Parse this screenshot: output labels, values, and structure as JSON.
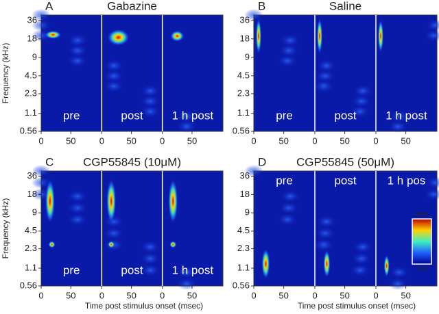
{
  "chart_data": [
    {
      "type": "heatmap",
      "panel": "A",
      "title": "Gabazine",
      "conditions": [
        "pre",
        "post",
        "1 h post"
      ],
      "ylabel": "Frequency (kHz)",
      "log_y": true,
      "ylim": [
        0.56,
        44
      ],
      "yticks": [
        36,
        18,
        9,
        4.5,
        2.3,
        1.1,
        0.56
      ],
      "xlim": [
        0,
        102
      ],
      "xticks": [
        0,
        50
      ]
    },
    {
      "type": "heatmap",
      "panel": "B",
      "title": "Saline",
      "conditions": [
        "pre",
        "post",
        "1 h post"
      ],
      "log_y": true,
      "ylim": [
        0.56,
        44
      ],
      "yticks": [
        36,
        18,
        9,
        4.5,
        2.3,
        1.1,
        0.56
      ],
      "xlim": [
        0,
        102
      ],
      "xticks": [
        0,
        50
      ]
    },
    {
      "type": "heatmap",
      "panel": "C",
      "title": "CGP55845 (10μM)",
      "conditions": [
        "pre",
        "post",
        "1 h post"
      ],
      "ylabel": "Frequency (kHz)",
      "xlabel": "Time post stimulus onset (msec)",
      "log_y": true,
      "ylim": [
        0.56,
        44
      ],
      "yticks": [
        36,
        18,
        9,
        4.5,
        2.3,
        1.1,
        0.56
      ],
      "xlim": [
        0,
        102
      ],
      "xticks": [
        0,
        50
      ]
    },
    {
      "type": "heatmap",
      "panel": "D",
      "title": "CGP55845 (50μM)",
      "conditions": [
        "pre",
        "post",
        "1 h pos"
      ],
      "xlabel": "Time post stimulus onset (msec)",
      "log_y": true,
      "ylim": [
        0.56,
        44
      ],
      "yticks": [
        36,
        18,
        9,
        4.5,
        2.3,
        1.1,
        0.56
      ],
      "xlim": [
        0,
        102
      ],
      "xticks": [
        0,
        50
      ],
      "colorbar": [
        "max",
        "min"
      ]
    }
  ]
}
